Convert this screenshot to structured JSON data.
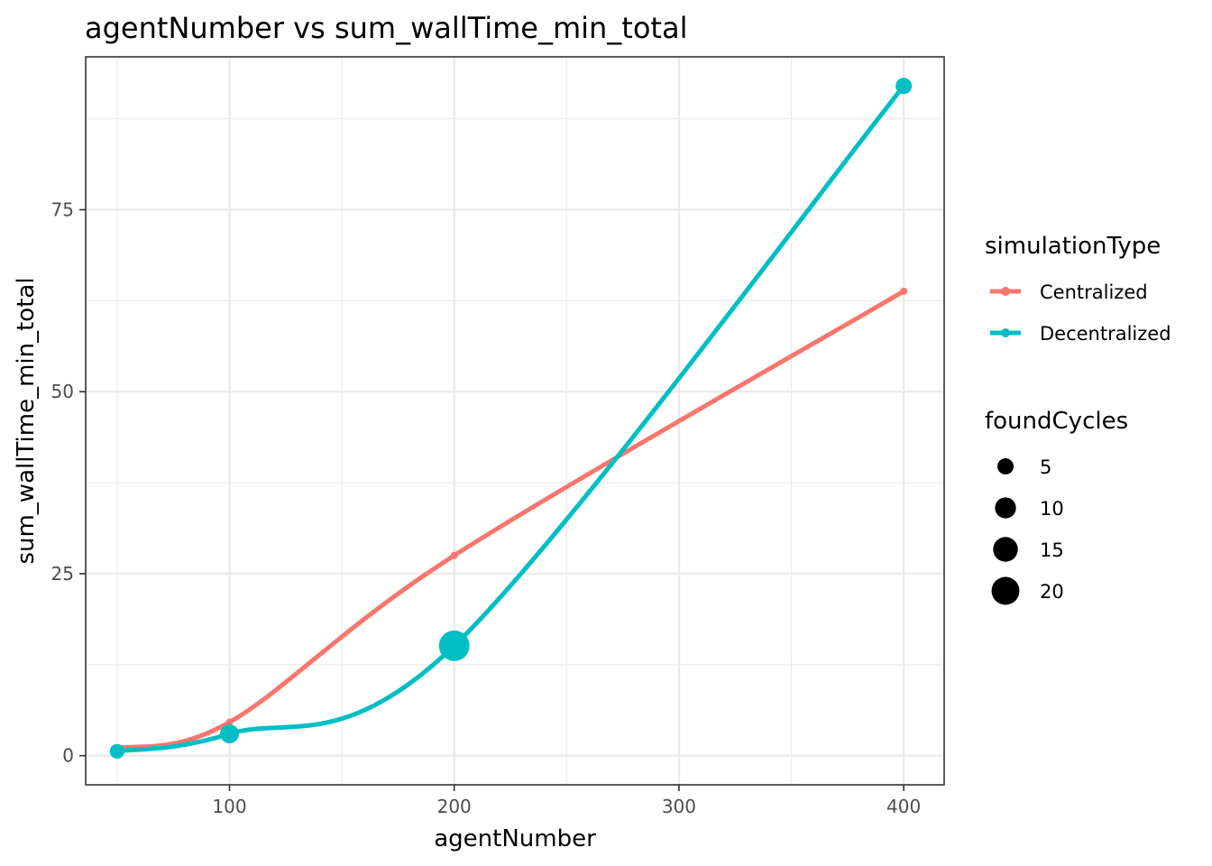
{
  "chart_data": {
    "type": "line",
    "title": "agentNumber  vs  sum_wallTime_min_total",
    "xlabel": "agentNumber",
    "ylabel": "sum_wallTime_min_total",
    "xlim": [
      36,
      418
    ],
    "ylim": [
      -4,
      96
    ],
    "x_ticks": [
      100,
      200,
      300,
      400
    ],
    "x_minor_ticks": [
      50,
      150,
      250,
      350
    ],
    "y_ticks": [
      0,
      25,
      50,
      75
    ],
    "y_minor_ticks": [
      12.5,
      37.5,
      62.5,
      87.5
    ],
    "grid": true,
    "legend_position": "right",
    "series": [
      {
        "name": "Centralized",
        "color": "#F8766D",
        "x": [
          50,
          100,
          200,
          400
        ],
        "y": [
          1.0,
          4.6,
          27.5,
          63.8
        ],
        "foundCycles": [
          0,
          0,
          0,
          0
        ]
      },
      {
        "name": "Decentralized",
        "color": "#00BFC4",
        "x": [
          50,
          100,
          200,
          400
        ],
        "y": [
          0.6,
          3.0,
          15.1,
          92.0
        ],
        "foundCycles": [
          2,
          5,
          20,
          3
        ]
      }
    ],
    "legends": {
      "color": {
        "title": "simulationType",
        "entries": [
          "Centralized",
          "Decentralized"
        ]
      },
      "size": {
        "title": "foundCycles",
        "entries": [
          "5",
          "10",
          "15",
          "20"
        ],
        "values": [
          5,
          10,
          15,
          20
        ]
      }
    }
  }
}
